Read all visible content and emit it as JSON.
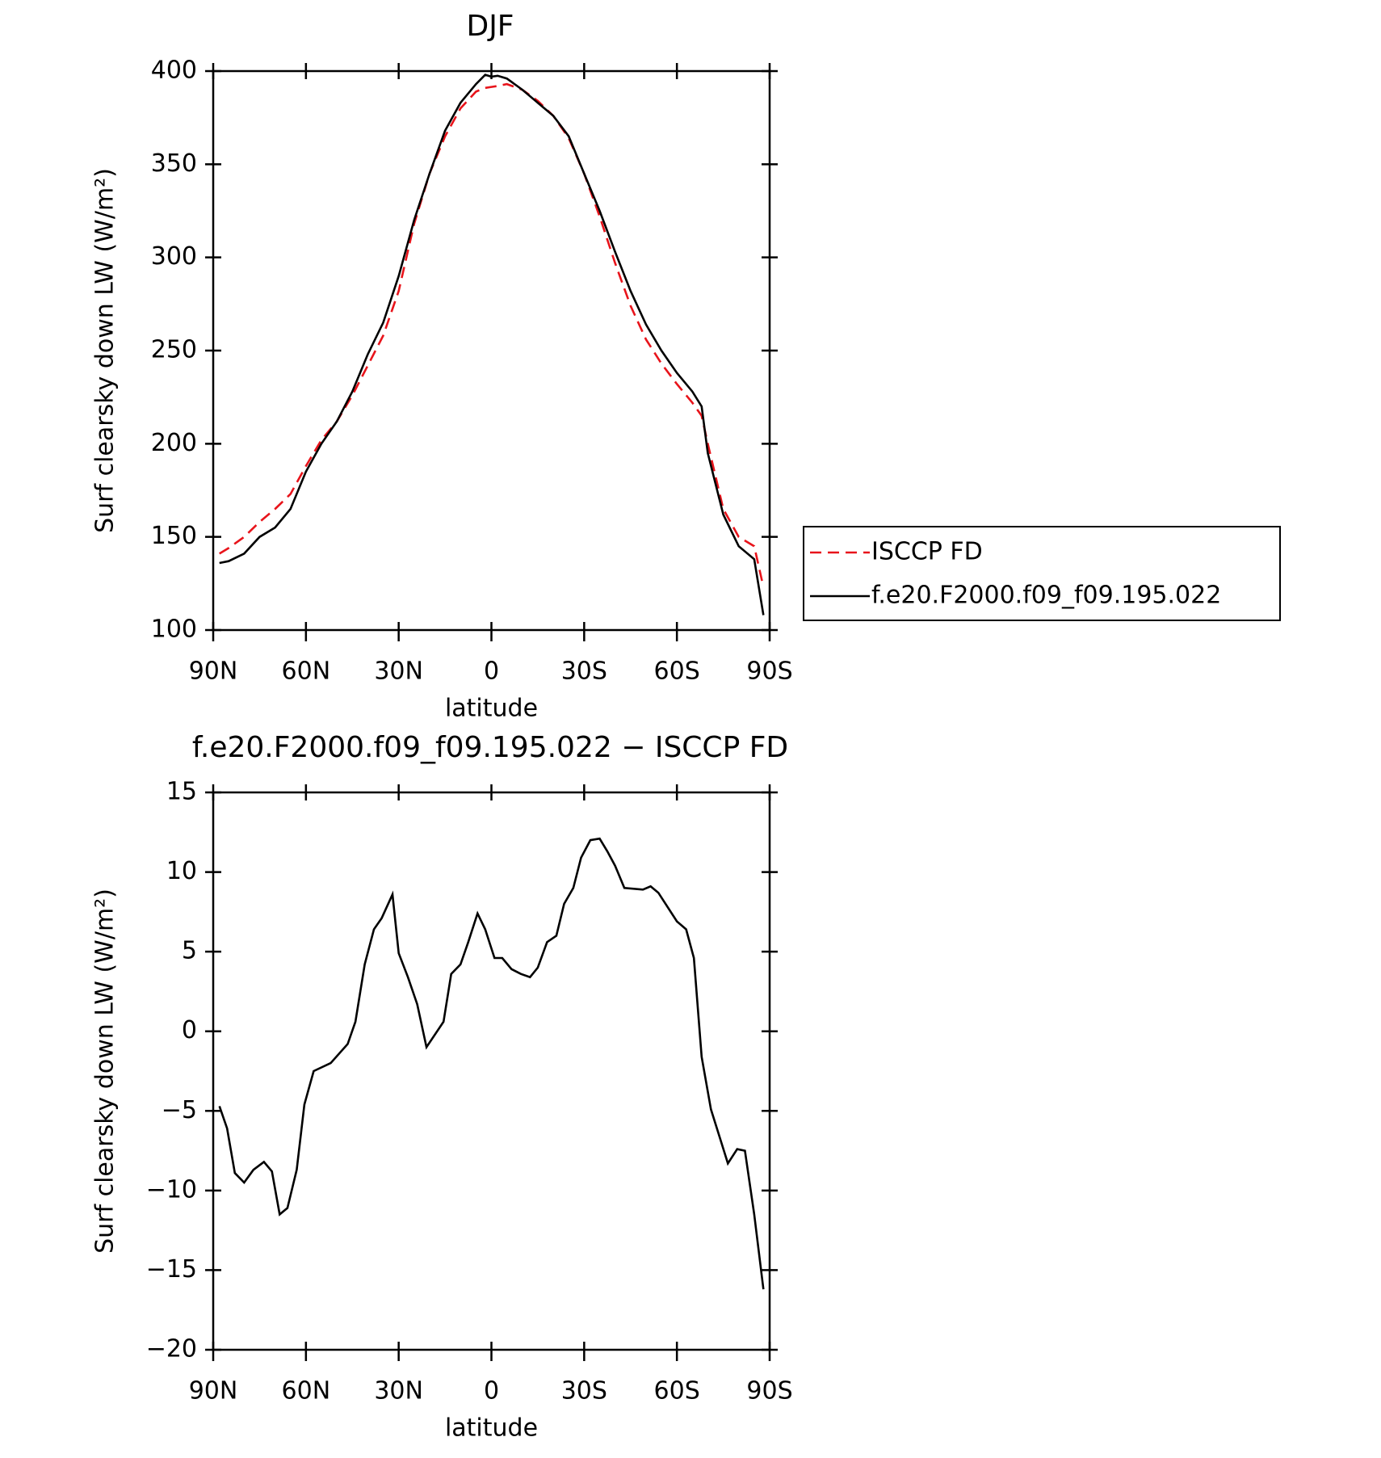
{
  "chart_data": [
    {
      "type": "line",
      "title": "DJF",
      "xlabel": "latitude",
      "ylabel": "Surf clearsky down LW (W/m²)",
      "x": [
        88,
        85,
        80,
        75,
        70,
        65,
        60,
        55,
        50,
        45,
        40,
        35,
        30,
        25,
        20,
        15,
        10,
        5,
        2,
        0,
        -2,
        -5,
        -10,
        -15,
        -20,
        -25,
        -30,
        -35,
        -40,
        -45,
        -50,
        -55,
        -60,
        -65,
        -68,
        -70,
        -75,
        -80,
        -85,
        -88
      ],
      "series": [
        {
          "name": "ISCCP FD",
          "color": "#e8141b",
          "dash": true,
          "values": [
            141,
            144,
            150,
            158,
            165,
            173,
            188,
            202,
            212,
            226,
            242,
            258,
            282,
            318,
            345,
            365,
            380,
            389,
            391,
            391.5,
            392,
            393,
            390,
            384,
            376,
            364,
            345,
            322,
            297,
            274,
            256,
            243,
            232,
            222,
            215,
            200,
            165,
            150,
            145,
            123
          ]
        },
        {
          "name": "f.e20.F2000.f09_f09.195.022",
          "color": "#000000",
          "dash": false,
          "values": [
            136,
            137,
            141,
            150,
            155,
            165,
            185,
            200,
            212,
            228,
            248,
            265,
            290,
            320,
            345,
            368,
            383,
            393,
            398,
            397,
            397.5,
            396,
            390,
            383,
            376,
            365,
            345,
            325,
            303,
            282,
            264,
            250,
            238,
            228,
            220,
            195,
            162,
            145,
            138,
            108
          ]
        }
      ],
      "xlim": [
        90,
        -90
      ],
      "xticks": [
        {
          "value": 90,
          "label": "90N"
        },
        {
          "value": 60,
          "label": "60N"
        },
        {
          "value": 30,
          "label": "30N"
        },
        0,
        {
          "value": -30,
          "label": "30S"
        },
        {
          "value": -60,
          "label": "60S"
        },
        {
          "value": -90,
          "label": "90S"
        }
      ],
      "ylim": [
        100,
        400
      ],
      "yticks": [
        100,
        150,
        200,
        250,
        300,
        350,
        400
      ],
      "legend": "right"
    },
    {
      "type": "line",
      "title": "f.e20.F2000.f09_f09.195.022 − ISCCP FD",
      "xlabel": "latitude",
      "ylabel": "Surf clearsky down LW (W/m²)",
      "x": [
        88,
        85.5,
        83,
        80,
        77,
        73.6,
        71,
        68.5,
        66,
        63,
        60.5,
        57.5,
        52,
        46.5,
        44,
        41,
        38,
        35.5,
        32,
        30,
        27,
        24,
        21,
        15.5,
        13,
        10,
        7.5,
        4.5,
        2,
        -1,
        -3.5,
        -6.5,
        -9.5,
        -12.5,
        -15,
        -18,
        -21,
        -23.5,
        -26.5,
        -29,
        -32,
        -35,
        -37.5,
        -40,
        -43,
        -49,
        -51.5,
        -54,
        -60,
        -63,
        -65.5,
        -68,
        -71,
        -76.5,
        -79.5,
        -82,
        -85,
        -88
      ],
      "series": [
        {
          "name": "f.e20.F2000.f09_f09.195.022",
          "color": "#000000",
          "dash": false,
          "values": [
            -4.7,
            -6.1,
            -8.9,
            -9.5,
            -8.7,
            -8.2,
            -8.8,
            -11.5,
            -11.1,
            -8.7,
            -4.6,
            -2.5,
            -2.0,
            -0.8,
            0.6,
            4.2,
            6.4,
            7.1,
            8.6,
            4.9,
            3.4,
            1.7,
            -1.0,
            0.6,
            3.6,
            4.2,
            5.6,
            7.4,
            6.4,
            4.6,
            4.6,
            3.9,
            3.6,
            3.4,
            4.0,
            5.6,
            6.0,
            8.0,
            9.0,
            10.9,
            12.0,
            12.1,
            11.3,
            10.4,
            9.0,
            8.9,
            9.1,
            8.7,
            6.9,
            6.4,
            4.6,
            -1.6,
            -4.9,
            -8.3,
            -7.4,
            -7.5,
            -11.5,
            -16.2
          ]
        }
      ],
      "xlim": [
        90,
        -90
      ],
      "xticks": [
        {
          "value": 90,
          "label": "90N"
        },
        {
          "value": 60,
          "label": "60N"
        },
        {
          "value": 30,
          "label": "30N"
        },
        0,
        {
          "value": -30,
          "label": "30S"
        },
        {
          "value": -60,
          "label": "60S"
        },
        {
          "value": -90,
          "label": "90S"
        }
      ],
      "ylim": [
        -20,
        15
      ],
      "yticks": [
        {
          "value": -20,
          "label": "−20"
        },
        {
          "value": -15,
          "label": "−15"
        },
        {
          "value": -10,
          "label": "−10"
        },
        {
          "value": -5,
          "label": "−5"
        },
        0,
        5,
        10,
        15
      ]
    }
  ]
}
